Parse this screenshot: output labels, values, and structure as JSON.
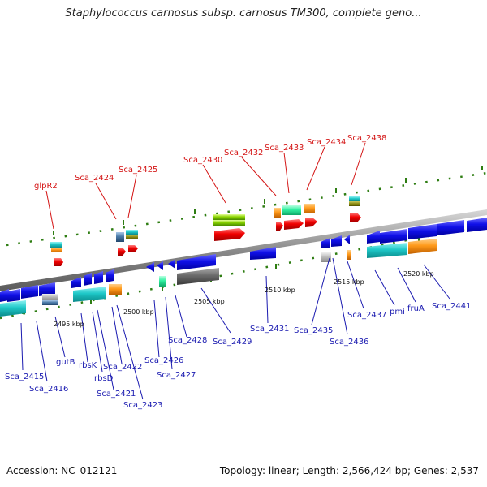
{
  "title": "Staphylococcus carnosus subsp. carnosus TM300, complete geno...",
  "footer": {
    "accession": "Accession: NC_012121",
    "summary": "Topology: linear; Length: 2,566,424 bp; Genes: 2,537"
  },
  "colors": {
    "label_red": "#d41515",
    "label_blue": "#1a1ab0",
    "backbone": "#8c8c8c",
    "tick": "#2e7d12"
  },
  "kbp_labels": [
    "2495 kbp",
    "2500 kbp",
    "2505 kbp",
    "2510 kbp",
    "2515 kbp",
    "2520 kbp"
  ],
  "red_labels": [
    "glpR2",
    "Sca_2424",
    "Sca_2425",
    "Sca_2430",
    "Sca_2432",
    "Sca_2433",
    "Sca_2434",
    "Sca_2438"
  ],
  "blue_labels": [
    "Sca_2415",
    "Sca_2416",
    "gutB",
    "rbsK",
    "rbsD",
    "Sca_2421",
    "Sca_2422",
    "Sca_2423",
    "Sca_2426",
    "Sca_2427",
    "Sca_2428",
    "Sca_2429",
    "Sca_2431",
    "Sca_2435",
    "Sca_2436",
    "Sca_2437",
    "pmi",
    "fruA",
    "Sca_2441"
  ]
}
